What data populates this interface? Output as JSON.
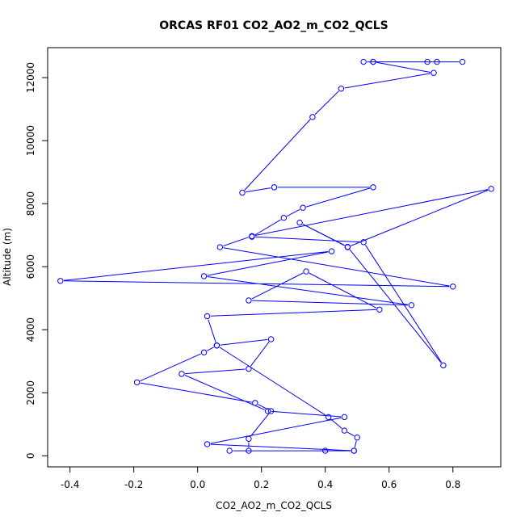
{
  "chart_data": {
    "type": "line",
    "title": "ORCAS RF01 CO2_AO2_m_CO2_QCLS",
    "xlabel": "CO2_AO2_m_CO2_QCLS",
    "ylabel": "Altitude (m)",
    "xlim": [
      -0.47,
      0.95
    ],
    "ylim": [
      -350,
      12950
    ],
    "xticks": [
      -0.4,
      -0.2,
      0.0,
      0.2,
      0.4,
      0.6,
      0.8
    ],
    "xtick_labels": [
      "-0.4",
      "-0.2",
      "0.0",
      "0.2",
      "0.4",
      "0.6",
      "0.8"
    ],
    "yticks": [
      0,
      2000,
      4000,
      6000,
      8000,
      10000,
      12000
    ],
    "ytick_labels": [
      "0",
      "2000",
      "4000",
      "6000",
      "8000",
      "10000",
      "12000"
    ],
    "grid": false,
    "marker": "open-circle",
    "color": "#0000ff",
    "series": [
      {
        "x": [
          0.52,
          0.72,
          0.75,
          0.55,
          0.83,
          0.55,
          0.74,
          0.45,
          0.36,
          0.14,
          0.24,
          0.55,
          0.33,
          0.27,
          0.17,
          0.52,
          0.77,
          0.47,
          0.32,
          0.47,
          0.92,
          0.17,
          0.07,
          0.8,
          -0.43,
          0.42,
          0.02,
          0.67,
          0.16,
          0.34,
          0.57,
          0.03,
          0.06,
          0.02,
          -0.19,
          0.18,
          0.23,
          0.16,
          0.16,
          0.4,
          0.1,
          0.49,
          0.03,
          0.46,
          0.22,
          -0.05,
          0.16,
          0.23,
          0.06,
          0.41,
          0.46,
          0.5,
          0.49
        ],
        "y": [
          12500,
          12500,
          12500,
          12500,
          12500,
          12500,
          12150,
          11650,
          10750,
          8350,
          8520,
          8520,
          7870,
          7550,
          6950,
          6780,
          2870,
          6630,
          7400,
          6620,
          8470,
          6970,
          6620,
          5370,
          5550,
          6490,
          5700,
          4780,
          4930,
          5850,
          4640,
          4430,
          3500,
          3280,
          2330,
          1680,
          1420,
          540,
          160,
          160,
          160,
          160,
          370,
          1230,
          1420,
          2600,
          2760,
          3700,
          3500,
          1230,
          800,
          580,
          160
        ]
      }
    ]
  }
}
